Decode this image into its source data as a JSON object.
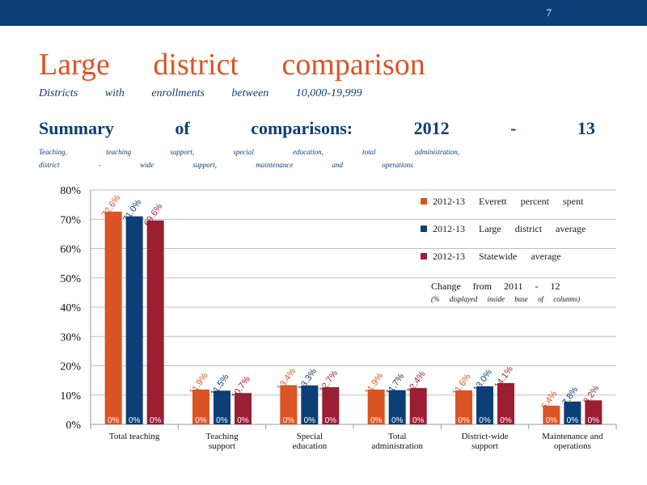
{
  "slide": {
    "page_number": "7",
    "title": "Large district comparison",
    "subtitle": "Districts with enrollments between 10,000-19,999",
    "summary_title": "Summary of comparisons: 2012 - 13",
    "summary_desc": "Teaching, teaching support, special education, total administration, district - wide support, maintenance and operations"
  },
  "colors": {
    "everett": "#dc5423",
    "large": "#0b3f75",
    "statewide": "#9b1e33",
    "header": "#0b3f75"
  },
  "chart_data": {
    "type": "bar",
    "categories": [
      "Total teaching",
      "Teaching support",
      "Special education",
      "Total administration",
      "District-wide support",
      "Maintenance and operations"
    ],
    "series": [
      {
        "name": "2012-13 Everett percent spent",
        "values": [
          72.6,
          11.9,
          13.4,
          11.9,
          11.6,
          6.4
        ],
        "labels": [
          "72.6%",
          "11.9%",
          "13.4%",
          "11.9%",
          "11.6%",
          "6.4%"
        ],
        "change_labels": [
          "0%",
          "0%",
          "0%",
          "0%",
          "0%",
          "0%"
        ]
      },
      {
        "name": "2012-13 Large district average",
        "values": [
          71.0,
          11.5,
          13.3,
          11.7,
          13.0,
          7.8
        ],
        "labels": [
          "71.0%",
          "11.5%",
          "13.3%",
          "11.7%",
          "13.0%",
          "7.8%"
        ],
        "change_labels": [
          "0%",
          "0%",
          "0%",
          "0%",
          "0%",
          "0%"
        ]
      },
      {
        "name": "2012-13 Statewide average",
        "values": [
          69.6,
          10.7,
          12.7,
          12.4,
          14.1,
          8.2
        ],
        "labels": [
          "69.6%",
          "10.7%",
          "12.7%",
          "12.4%",
          "14.1%",
          "8.2%"
        ],
        "change_labels": [
          "0%",
          "0%",
          "0%",
          "0%",
          "0%",
          "0%"
        ]
      }
    ],
    "ylim": [
      0,
      80
    ],
    "yticks": [
      "0%",
      "10%",
      "20%",
      "30%",
      "40%",
      "50%",
      "60%",
      "70%",
      "80%"
    ],
    "grid": true,
    "legend_position": "top-right",
    "note_title": "Change from 2011 - 12",
    "note_subtitle": "(% displayed inside base of columns)"
  }
}
